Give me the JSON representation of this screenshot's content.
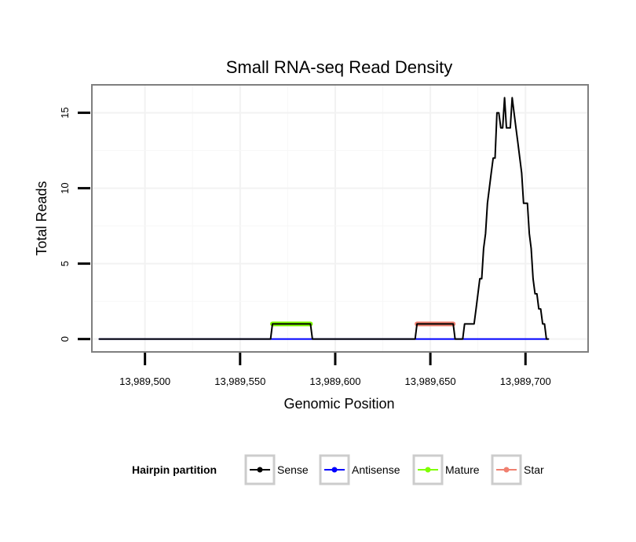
{
  "chart_data": {
    "type": "line",
    "title": "Small RNA-seq Read Density",
    "xlabel": "Genomic Position",
    "ylabel": "Total Reads",
    "xlim": [
      13989472.5,
      13989732.5
    ],
    "ylim": [
      -0.8,
      16.8
    ],
    "x_ticks": [
      13989500,
      13989550,
      13989600,
      13989650,
      13989700
    ],
    "x_tick_labels": [
      "13,989,500",
      "13,989,550",
      "13,989,600",
      "13,989,650",
      "13,989,700"
    ],
    "y_ticks": [
      0,
      5,
      10,
      15
    ],
    "y_tick_labels": [
      "0",
      "5",
      "10",
      "15"
    ],
    "grid": true,
    "legend": {
      "title": "Hairpin partition",
      "position": "bottom",
      "entries": [
        "Sense",
        "Antisense",
        "Mature",
        "Star"
      ]
    },
    "series": [
      {
        "name": "Sense",
        "color": "#000000",
        "points": [
          [
            13989476,
            0
          ],
          [
            13989566,
            0
          ],
          [
            13989567,
            1
          ],
          [
            13989587,
            1
          ],
          [
            13989588,
            0
          ],
          [
            13989642,
            0
          ],
          [
            13989643,
            1
          ],
          [
            13989662,
            1
          ],
          [
            13989663,
            0
          ],
          [
            13989667,
            0
          ],
          [
            13989668,
            1
          ],
          [
            13989673,
            1
          ],
          [
            13989674,
            2
          ],
          [
            13989675,
            3
          ],
          [
            13989676,
            4
          ],
          [
            13989677,
            4
          ],
          [
            13989678,
            6
          ],
          [
            13989679,
            7
          ],
          [
            13989680,
            9
          ],
          [
            13989681,
            10
          ],
          [
            13989682,
            11
          ],
          [
            13989683,
            12
          ],
          [
            13989684,
            12
          ],
          [
            13989685,
            15
          ],
          [
            13989686,
            15
          ],
          [
            13989687,
            14
          ],
          [
            13989688,
            14
          ],
          [
            13989689,
            16
          ],
          [
            13989690,
            14
          ],
          [
            13989691,
            14
          ],
          [
            13989692,
            14
          ],
          [
            13989693,
            16
          ],
          [
            13989694,
            15
          ],
          [
            13989695,
            14
          ],
          [
            13989696,
            13
          ],
          [
            13989697,
            12
          ],
          [
            13989698,
            11
          ],
          [
            13989699,
            9
          ],
          [
            13989700,
            9
          ],
          [
            13989701,
            9
          ],
          [
            13989702,
            7
          ],
          [
            13989703,
            6
          ],
          [
            13989704,
            4
          ],
          [
            13989705,
            3
          ],
          [
            13989706,
            3
          ],
          [
            13989707,
            2
          ],
          [
            13989708,
            2
          ],
          [
            13989709,
            1
          ],
          [
            13989710,
            1
          ],
          [
            13989711,
            0
          ],
          [
            13989712,
            0
          ]
        ]
      },
      {
        "name": "Antisense",
        "color": "#0000FF",
        "points": [
          [
            13989476,
            0
          ],
          [
            13989712,
            0
          ]
        ]
      },
      {
        "name": "Mature",
        "color": "#7FFF00",
        "points": [
          [
            13989567,
            1
          ],
          [
            13989587,
            1
          ]
        ]
      },
      {
        "name": "Star",
        "color": "#F08070",
        "points": [
          [
            13989643,
            1
          ],
          [
            13989662,
            1
          ]
        ]
      }
    ]
  }
}
